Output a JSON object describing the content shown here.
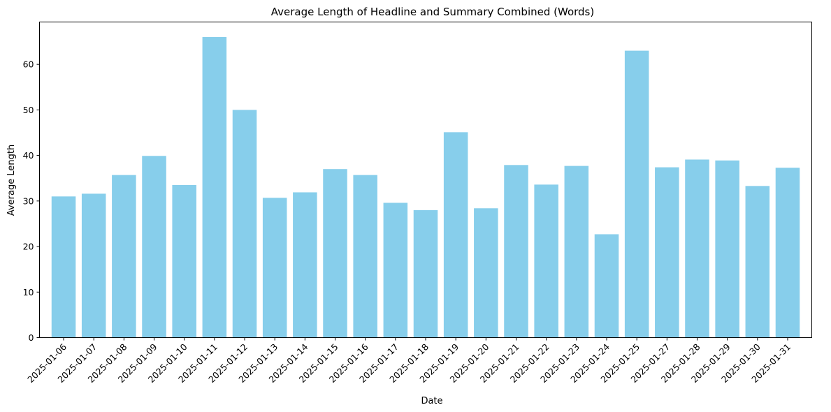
{
  "chart_data": {
    "type": "bar",
    "title": "Average Length of Headline and Summary Combined (Words)",
    "xlabel": "Date",
    "ylabel": "Average Length",
    "categories": [
      "2025-01-06",
      "2025-01-07",
      "2025-01-08",
      "2025-01-09",
      "2025-01-10",
      "2025-01-11",
      "2025-01-12",
      "2025-01-13",
      "2025-01-14",
      "2025-01-15",
      "2025-01-16",
      "2025-01-17",
      "2025-01-18",
      "2025-01-19",
      "2025-01-20",
      "2025-01-21",
      "2025-01-22",
      "2025-01-23",
      "2025-01-24",
      "2025-01-25",
      "2025-01-27",
      "2025-01-28",
      "2025-01-29",
      "2025-01-30",
      "2025-01-31"
    ],
    "values": [
      31.0,
      31.6,
      35.7,
      39.9,
      33.5,
      66.0,
      50.0,
      30.7,
      31.9,
      37.0,
      35.7,
      29.6,
      28.0,
      45.1,
      28.4,
      37.9,
      33.6,
      37.7,
      22.7,
      63.0,
      37.4,
      39.1,
      38.9,
      33.3,
      37.3
    ],
    "yticks": [
      0,
      10,
      20,
      30,
      40,
      50,
      60
    ],
    "ylim": [
      0,
      69.3
    ],
    "bar_color": "#87CEEB",
    "grid": false,
    "legend": "none"
  }
}
